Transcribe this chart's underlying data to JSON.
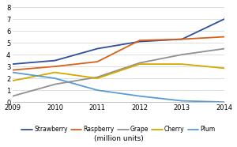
{
  "years": [
    2009,
    2010,
    2011,
    2012,
    2013,
    2014
  ],
  "series": {
    "Strawberry": [
      3.2,
      3.5,
      4.5,
      5.1,
      5.3,
      7.0
    ],
    "Raspberry": [
      2.7,
      3.0,
      3.4,
      5.2,
      5.3,
      5.5
    ],
    "Grape": [
      0.5,
      1.5,
      2.1,
      3.3,
      4.0,
      4.5
    ],
    "Cherry": [
      1.8,
      2.5,
      2.0,
      3.2,
      3.2,
      2.85
    ],
    "Plum": [
      2.5,
      2.0,
      1.0,
      0.5,
      0.1,
      0.0
    ]
  },
  "colors": {
    "Strawberry": "#2e4f9c",
    "Raspberry": "#d9601a",
    "Grape": "#909090",
    "Cherry": "#d4a800",
    "Plum": "#5b9bd5"
  },
  "ylim": [
    0,
    8
  ],
  "yticks": [
    0,
    1,
    2,
    3,
    4,
    5,
    6,
    7,
    8
  ],
  "xlabel": "(million units)",
  "background_color": "#ffffff",
  "grid_color": "#d9d9d9",
  "label_fontsize": 6,
  "legend_fontsize": 5.5
}
